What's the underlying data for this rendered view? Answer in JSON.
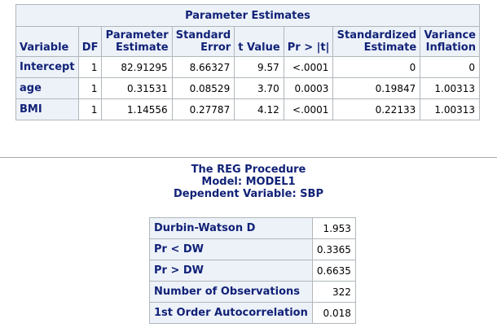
{
  "parameter_estimates": {
    "title": "Parameter Estimates",
    "headers": [
      [
        "Variable"
      ],
      [
        "DF"
      ],
      [
        "Parameter",
        "Estimate"
      ],
      [
        "Standard",
        "Error"
      ],
      [
        "t Value"
      ],
      [
        "Pr > |t|"
      ],
      [
        "Standardized",
        "Estimate"
      ],
      [
        "Variance",
        "Inflation"
      ]
    ],
    "rows": [
      {
        "variable": "Intercept",
        "df": "1",
        "estimate": "82.91295",
        "std_error": "8.66327",
        "t_value": "9.57",
        "p_value": "<.0001",
        "std_estimate": "0",
        "vif": "0"
      },
      {
        "variable": "age",
        "df": "1",
        "estimate": "0.31531",
        "std_error": "0.08529",
        "t_value": "3.70",
        "p_value": "0.0003",
        "std_estimate": "0.19847",
        "vif": "1.00313"
      },
      {
        "variable": "BMI",
        "df": "1",
        "estimate": "1.14556",
        "std_error": "0.27787",
        "t_value": "4.12",
        "p_value": "<.0001",
        "std_estimate": "0.22133",
        "vif": "1.00313"
      }
    ]
  },
  "procedure": {
    "title": "The REG Procedure",
    "model": "Model: MODEL1",
    "dependent": "Dependent Variable: SBP"
  },
  "durbin_watson": {
    "rows": [
      {
        "label": "Durbin-Watson D",
        "value": "1.953"
      },
      {
        "label": "Pr < DW",
        "value": "0.3365"
      },
      {
        "label": "Pr > DW",
        "value": "0.6635"
      },
      {
        "label": "Number of Observations",
        "value": "322"
      },
      {
        "label": "1st Order Autocorrelation",
        "value": "0.018"
      }
    ]
  },
  "colors": {
    "header_bg": "#edf2f9",
    "header_text": "#112277",
    "grid": "#b0b7bb"
  }
}
